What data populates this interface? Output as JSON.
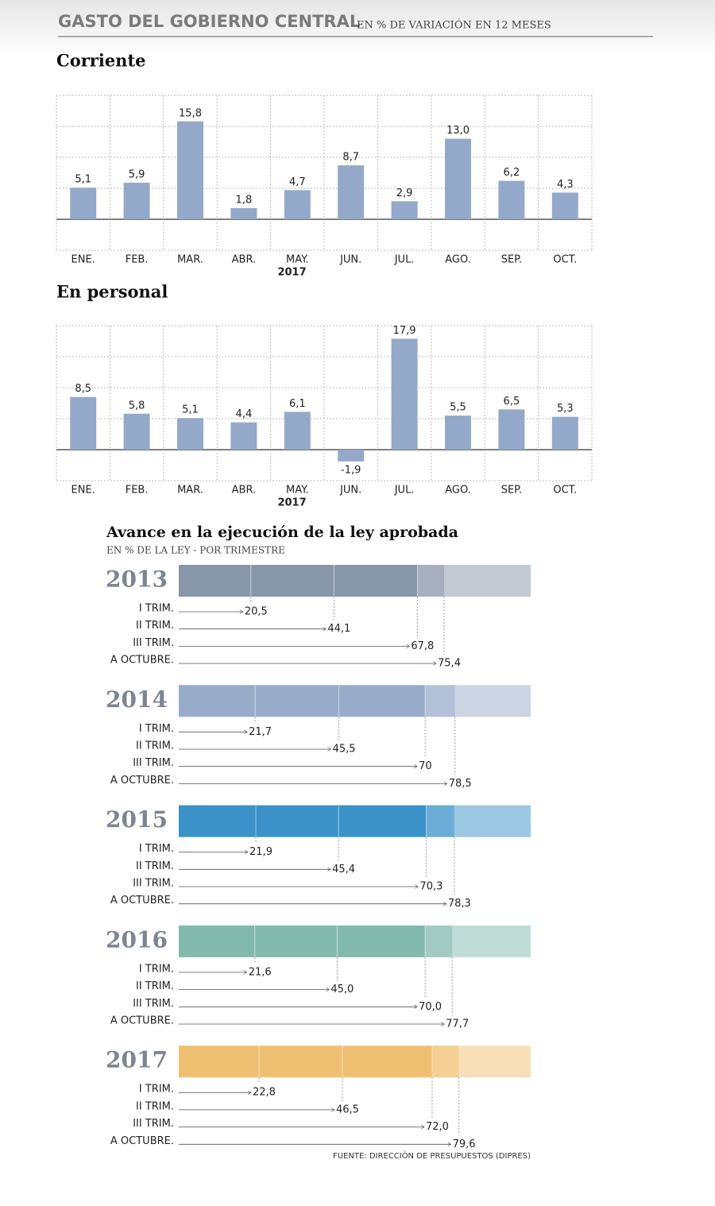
{
  "header": {
    "title": "GASTO DEL GOBIERNO CENTRAL",
    "subtitle": "EN % DE VARIACIÓN EN 12 MESES"
  },
  "chart_data": [
    {
      "type": "bar",
      "title": "Corriente",
      "xlabel": "2017",
      "categories": [
        "ENE.",
        "FEB.",
        "MAR.",
        "ABR.",
        "MAY.",
        "JUN.",
        "JUL.",
        "AGO.",
        "SEP.",
        "OCT."
      ],
      "values": [
        5.1,
        5.9,
        15.8,
        1.8,
        4.7,
        8.7,
        2.9,
        13.0,
        6.2,
        4.3
      ],
      "value_labels": [
        "5,1",
        "5,9",
        "15,8",
        "1,8",
        "4,7",
        "8,7",
        "2,9",
        "13,0",
        "6,2",
        "4,3"
      ],
      "color": "#94a9c9",
      "ylim": [
        -5,
        20
      ],
      "yticks": [
        -5,
        0,
        5,
        10,
        15,
        20
      ],
      "grid": true
    },
    {
      "type": "bar",
      "title": "En personal",
      "xlabel": "2017",
      "categories": [
        "ENE.",
        "FEB.",
        "MAR.",
        "ABR.",
        "MAY.",
        "JUN.",
        "JUL.",
        "AGO.",
        "SEP.",
        "OCT."
      ],
      "values": [
        8.5,
        5.8,
        5.1,
        4.4,
        6.1,
        -1.9,
        17.9,
        5.5,
        6.5,
        5.3
      ],
      "value_labels": [
        "8,5",
        "5,8",
        "5,1",
        "4,4",
        "6,1",
        "-1,9",
        "17,9",
        "5,5",
        "6,5",
        "5,3"
      ],
      "color": "#94a9c9",
      "ylim": [
        -5,
        20
      ],
      "yticks": [
        -5,
        0,
        5,
        10,
        15,
        20
      ],
      "grid": true
    },
    {
      "type": "progress",
      "title": "Avance en la ejecución de la ley aprobada",
      "subtitle": "EN % DE LA LEY - POR TRIMESTRE",
      "categories": [
        "I TRIM.",
        "II TRIM.",
        "III TRIM.",
        "A OCTUBRE."
      ],
      "xlim": [
        0,
        100
      ],
      "series": [
        {
          "name": "2013",
          "color": "#8896a9",
          "values": [
            20.5,
            44.1,
            67.8,
            75.4
          ],
          "value_labels": [
            "20,5",
            "44,1",
            "67,8",
            "75,4"
          ]
        },
        {
          "name": "2014",
          "color": "#98acc9",
          "values": [
            21.7,
            45.5,
            70,
            78.5
          ],
          "value_labels": [
            "21,7",
            "45,5",
            "70",
            "78,5"
          ]
        },
        {
          "name": "2015",
          "color": "#3a92c9",
          "values": [
            21.9,
            45.4,
            70.3,
            78.3
          ],
          "value_labels": [
            "21,9",
            "45,4",
            "70,3",
            "78,3"
          ]
        },
        {
          "name": "2016",
          "color": "#82b9ad",
          "values": [
            21.6,
            45.0,
            70.0,
            77.7
          ],
          "value_labels": [
            "21,6",
            "45,0",
            "70,0",
            "77,7"
          ]
        },
        {
          "name": "2017",
          "color": "#f0c072",
          "values": [
            22.8,
            46.5,
            72.0,
            79.6
          ],
          "value_labels": [
            "22,8",
            "46,5",
            "72,0",
            "79,6"
          ]
        }
      ]
    }
  ],
  "source": "FUENTE: DIRECCIÓN DE PRESUPUESTOS (DIPRES)"
}
